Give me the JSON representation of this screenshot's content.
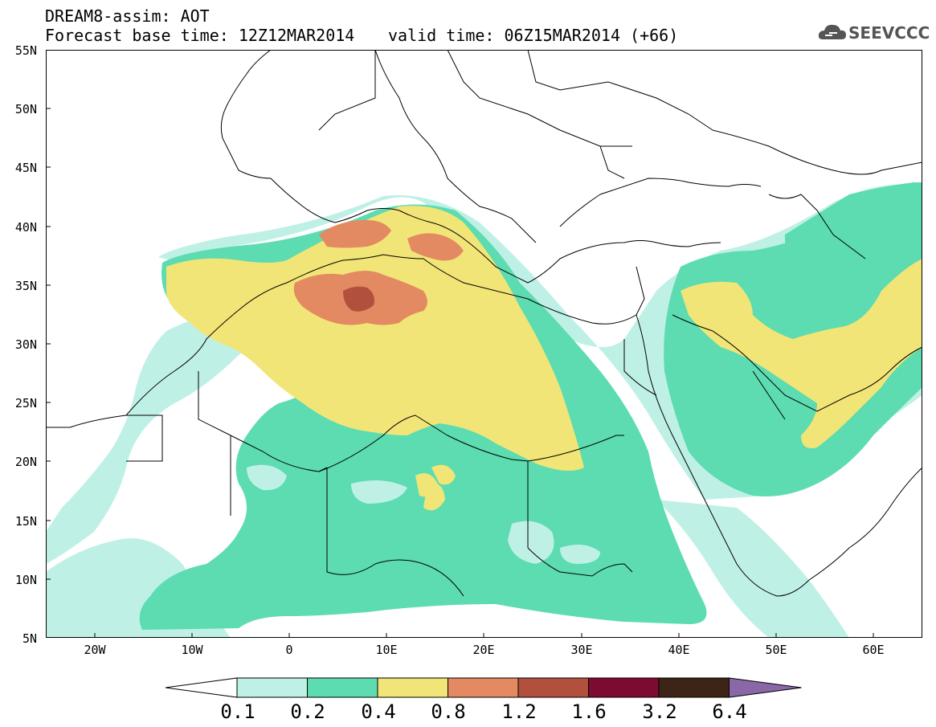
{
  "header": {
    "title": "DREAM8-assim: AOT",
    "base_time": "Forecast base time: 12Z12MAR2014",
    "valid_time": "valid time: 06Z15MAR2014 (+66)",
    "logo_text": "SEEVCCC"
  },
  "map": {
    "variable": "AOT",
    "lat_labels": [
      "55N",
      "50N",
      "45N",
      "40N",
      "35N",
      "30N",
      "25N",
      "20N",
      "15N",
      "10N",
      "5N"
    ],
    "lon_labels": [
      "20W",
      "10W",
      "0",
      "10E",
      "20E",
      "30E",
      "40E",
      "50E",
      "60E"
    ],
    "extent": {
      "lon_min": -25,
      "lon_max": 65,
      "lat_min": 5,
      "lat_max": 55
    }
  },
  "colorbar": {
    "labels": [
      "0.1",
      "0.2",
      "0.4",
      "0.8",
      "1.2",
      "1.6",
      "3.2",
      "6.4"
    ],
    "colors": [
      "#ffffff",
      "#bff0e6",
      "#5cdcb0",
      "#f2e577",
      "#e38a62",
      "#b2503e",
      "#7d0a30",
      "#3d2416",
      "#8a68a8"
    ]
  }
}
